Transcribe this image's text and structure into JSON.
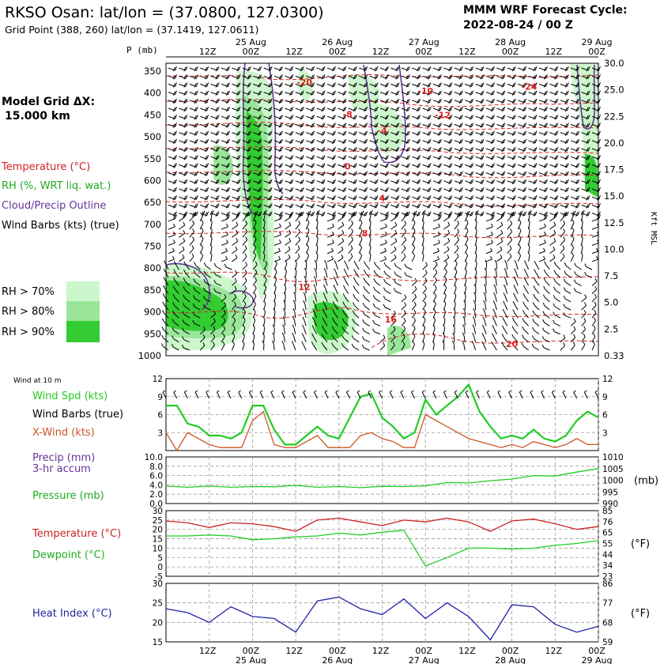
{
  "header": {
    "title": "RKSO Osan:  lat/lon = (37.0800, 127.0300)",
    "subtitle": "Grid Point (388, 260) lat/lon = (37.1419, 127.0611)",
    "cycle_line1": "MMM WRF Forecast Cycle:",
    "cycle_line2": "2022-08-24 / 00  Z"
  },
  "legend": {
    "model_grid_label": "Model Grid ΔX:",
    "model_grid_value": "15.000 km",
    "temperature": "Temperature (°C)",
    "rh": "RH (%, WRT liq. wat.)",
    "cloud": "Cloud/Precip Outline",
    "barbs": "Wind Barbs (kts) (true)",
    "rh_levels": [
      "RH > 70%",
      "RH > 80%",
      "RH > 90%"
    ],
    "rh_colors": [
      "#ccf7cc",
      "#99e699",
      "#33cc33"
    ]
  },
  "time_axis": {
    "top_days": [
      "25 Aug",
      "26 Aug",
      "27 Aug",
      "28 Aug",
      "29 Aug"
    ],
    "hour_labels": [
      "12Z",
      "00Z",
      "12Z",
      "00Z",
      "12Z",
      "00Z",
      "12Z",
      "00Z",
      "12Z",
      "00Z"
    ],
    "bottom_days": [
      "25 Aug",
      "26 Aug",
      "27 Aug",
      "28 Aug",
      "29 Aug"
    ]
  },
  "chart_data": [
    {
      "type": "heatmap",
      "name": "cross-section",
      "ylabel": "P (mb)",
      "pressure_levels": [
        350,
        400,
        450,
        500,
        550,
        600,
        650,
        700,
        750,
        800,
        850,
        900,
        950,
        1000
      ],
      "height_right_label": "Kft MSL",
      "height_ticks": [
        "30.0",
        "25.0",
        "22.5",
        "20.0",
        "17.5",
        "15.0",
        "12.5",
        "10.0",
        "7.5",
        "5.0",
        "2.5",
        "0.33"
      ],
      "temperature_contour_labels": [
        {
          "value": "-20",
          "t": 16,
          "p": 375
        },
        {
          "value": "-10",
          "t": 30,
          "p": 395
        },
        {
          "value": "-24",
          "t": 42,
          "p": 385
        },
        {
          "value": "-8",
          "t": 21,
          "p": 448
        },
        {
          "value": "-12",
          "t": 32,
          "p": 450
        },
        {
          "value": "-4",
          "t": 25,
          "p": 485
        },
        {
          "value": "0",
          "t": 21,
          "p": 568
        },
        {
          "value": "4",
          "t": 25,
          "p": 640
        },
        {
          "value": "8",
          "t": 23,
          "p": 720
        },
        {
          "value": "12",
          "t": 16,
          "p": 843
        },
        {
          "value": "16",
          "t": 26,
          "p": 917
        },
        {
          "value": "20",
          "t": 40,
          "p": 973
        }
      ]
    },
    {
      "type": "line",
      "name": "wind",
      "top_label": "Wind at 10 m",
      "series_labels": [
        "Wind Spd (kts)",
        "Wind Barbs (true)",
        "X-Wind (kts)"
      ],
      "ylim": [
        0,
        12
      ],
      "y_ticks": [
        "12",
        "9",
        "6",
        "3"
      ],
      "x": [
        0,
        3,
        6,
        9,
        12,
        15,
        18,
        21,
        24,
        27,
        30,
        33,
        36,
        39,
        42,
        45,
        48,
        51,
        54,
        57,
        60,
        63,
        66,
        69,
        72,
        75,
        78,
        81,
        84,
        87,
        90,
        93,
        96,
        99,
        102,
        105,
        108,
        111,
        114,
        117,
        120
      ],
      "series": [
        {
          "name": "Wind Spd (kts)",
          "color": "#22cc22",
          "values": [
            7.5,
            7.5,
            4.5,
            4.0,
            2.5,
            2.5,
            2.0,
            3.0,
            7.5,
            7.5,
            3.5,
            1.0,
            1.0,
            2.5,
            4.0,
            2.5,
            2.0,
            5.5,
            9.0,
            9.5,
            5.5,
            4.0,
            2.0,
            3.0,
            8.5,
            6.0,
            7.5,
            9.0,
            11.0,
            6.5,
            4.0,
            2.0,
            2.5,
            2.0,
            3.5,
            2.0,
            1.5,
            2.5,
            5.0,
            6.5,
            5.5
          ]
        },
        {
          "name": "X-Wind (kts)",
          "color": "#cc5522",
          "values": [
            3.0,
            0.0,
            3.0,
            2.0,
            1.0,
            0.5,
            0.5,
            0.5,
            5.0,
            6.5,
            1.0,
            0.5,
            0.5,
            1.5,
            2.5,
            0.5,
            0.5,
            0.5,
            2.5,
            3.0,
            2.0,
            1.5,
            0.5,
            0.5,
            6.0,
            5.0,
            4.0,
            3.0,
            2.0,
            1.5,
            1.0,
            0.5,
            1.0,
            0.5,
            1.5,
            1.0,
            0.5,
            1.0,
            2.0,
            1.0,
            1.0
          ]
        }
      ]
    },
    {
      "type": "line",
      "name": "precip-pressure",
      "series_labels": [
        "Precip (mm)",
        "3-hr accum",
        "Pressure (mb)"
      ],
      "left_ticks": [
        "10.0",
        "8.0",
        "6.0",
        "4.0",
        "2.0",
        "0.0"
      ],
      "right_ticks": [
        "1010",
        "1005",
        "1000",
        "995",
        "990"
      ],
      "right_label": "(mb)",
      "ylim_left": [
        0,
        10
      ],
      "ylim_right": [
        990,
        1010
      ],
      "x": [
        0,
        6,
        12,
        18,
        24,
        30,
        36,
        42,
        48,
        54,
        60,
        66,
        72,
        78,
        84,
        90,
        96,
        102,
        108,
        114,
        120
      ],
      "series": [
        {
          "name": "Pressure (mb)",
          "color": "#22cc22",
          "values": [
            997.5,
            997.0,
            997.5,
            997.0,
            997.3,
            997.2,
            997.8,
            997.0,
            997.3,
            996.8,
            997.4,
            997.3,
            997.6,
            999.0,
            998.8,
            999.8,
            1000.5,
            1002.0,
            1001.8,
            1003.5,
            1005.0
          ]
        }
      ]
    },
    {
      "type": "line",
      "name": "temp-dewpoint",
      "series_labels": [
        "Temperature (°C)",
        "Dewpoint (°C)"
      ],
      "left_ticks": [
        "30",
        "25",
        "20",
        "15",
        "10",
        "5",
        "0",
        "-5"
      ],
      "right_ticks": [
        "85",
        "76",
        "65",
        "55",
        "44",
        "34",
        "23"
      ],
      "right_label": "(°F)",
      "ylim": [
        -5,
        30
      ],
      "x": [
        0,
        6,
        12,
        18,
        24,
        30,
        36,
        42,
        48,
        54,
        60,
        66,
        72,
        78,
        84,
        90,
        96,
        102,
        108,
        114,
        120
      ],
      "series": [
        {
          "name": "Temperature (°C)",
          "color": "#cc2222",
          "values": [
            24.5,
            23.5,
            21.0,
            23.5,
            23.0,
            21.5,
            19.0,
            25.0,
            26.0,
            24.0,
            22.0,
            25.0,
            24.0,
            26.0,
            24.0,
            19.0,
            24.5,
            25.5,
            23.0,
            20.0,
            21.5
          ]
        },
        {
          "name": "Dewpoint (°C)",
          "color": "#22cc22",
          "values": [
            16.5,
            16.5,
            17.0,
            16.5,
            14.5,
            15.0,
            16.0,
            16.5,
            18.0,
            17.0,
            18.5,
            19.5,
            0.5,
            5.0,
            10.0,
            10.0,
            9.5,
            10.0,
            11.5,
            12.5,
            14.0
          ]
        }
      ]
    },
    {
      "type": "line",
      "name": "heat-index",
      "series_labels": [
        "Heat Index (°C)"
      ],
      "left_ticks": [
        "30",
        "25",
        "20",
        "15"
      ],
      "right_ticks": [
        "86",
        "77",
        "68",
        "59"
      ],
      "right_label": "(°F)",
      "ylim": [
        15,
        30
      ],
      "x": [
        0,
        6,
        12,
        18,
        24,
        30,
        36,
        42,
        48,
        54,
        60,
        66,
        72,
        78,
        84,
        90,
        96,
        102,
        108,
        114,
        120
      ],
      "series": [
        {
          "name": "Heat Index (°C)",
          "color": "#2222aa",
          "values": [
            23.5,
            22.5,
            20.0,
            24.0,
            21.5,
            21.0,
            17.5,
            25.5,
            26.5,
            23.5,
            22.0,
            26.0,
            21.0,
            25.0,
            21.5,
            15.5,
            24.5,
            24.0,
            19.5,
            17.5,
            19.0
          ]
        }
      ]
    }
  ]
}
